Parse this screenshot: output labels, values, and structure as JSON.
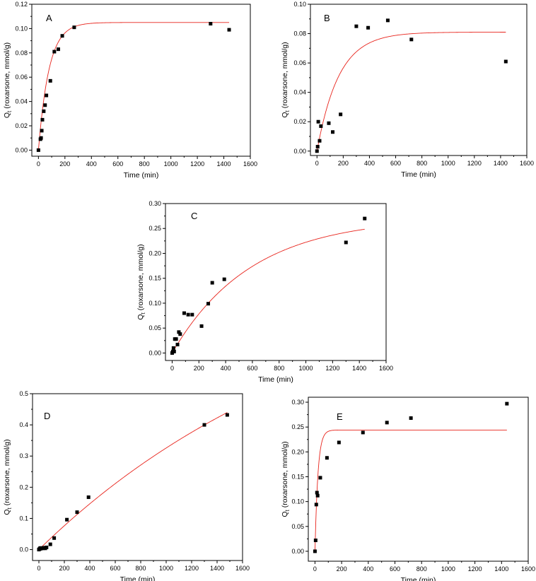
{
  "chart_data": [
    {
      "panel": "A",
      "type": "scatter",
      "xlabel": "Time (min)",
      "ylabel_prefix": "Q",
      "ylabel_sub": "t",
      "ylabel_suffix": " (roxarsone, mmol/g)",
      "xlim": [
        -50,
        1600
      ],
      "ylim": [
        -0.005,
        0.12
      ],
      "xticks": [
        0,
        200,
        400,
        600,
        800,
        1000,
        1200,
        1400,
        1600
      ],
      "yticks": [
        0.0,
        0.02,
        0.04,
        0.06,
        0.08,
        0.1,
        0.12
      ],
      "ytick_decimals": 2,
      "points": {
        "x": [
          0,
          15,
          20,
          25,
          30,
          40,
          50,
          60,
          90,
          120,
          150,
          180,
          270,
          1300,
          1440
        ],
        "y": [
          0.0,
          0.009,
          0.01,
          0.016,
          0.025,
          0.032,
          0.037,
          0.045,
          0.057,
          0.081,
          0.083,
          0.094,
          0.101,
          0.104,
          0.099
        ]
      },
      "fit": {
        "model": "pseudo-first-order",
        "qe": 0.105,
        "k": 0.0125,
        "x_range": [
          0,
          1440
        ]
      }
    },
    {
      "panel": "B",
      "type": "scatter",
      "xlabel": "Time (min)",
      "ylabel_prefix": "Q",
      "ylabel_sub": "t",
      "ylabel_suffix": " (roxarsone, mmol/g)",
      "xlim": [
        -50,
        1600
      ],
      "ylim": [
        -0.003,
        0.1
      ],
      "xticks": [
        0,
        200,
        400,
        600,
        800,
        1000,
        1200,
        1400,
        1600
      ],
      "yticks": [
        0.0,
        0.02,
        0.04,
        0.06,
        0.08,
        0.1
      ],
      "ytick_decimals": 2,
      "points": {
        "x": [
          0,
          5,
          10,
          20,
          30,
          90,
          120,
          180,
          300,
          390,
          540,
          720,
          1440
        ],
        "y": [
          0.0,
          0.003,
          0.02,
          0.007,
          0.017,
          0.019,
          0.013,
          0.025,
          0.085,
          0.084,
          0.089,
          0.076,
          0.061
        ]
      },
      "fit": {
        "model": "pseudo-first-order",
        "qe": 0.081,
        "k": 0.006,
        "x_range": [
          0,
          1440
        ]
      }
    },
    {
      "panel": "C",
      "type": "scatter",
      "xlabel": "Time (min)",
      "ylabel_prefix": "Q",
      "ylabel_sub": "t",
      "ylabel_suffix": " (roxarsone, mmol/g)",
      "xlim": [
        -50,
        1600
      ],
      "ylim": [
        -0.015,
        0.3
      ],
      "xticks": [
        0,
        200,
        400,
        600,
        800,
        1000,
        1200,
        1400,
        1600
      ],
      "yticks": [
        0.0,
        0.05,
        0.1,
        0.15,
        0.2,
        0.25,
        0.3
      ],
      "ytick_decimals": 2,
      "points": {
        "x": [
          0,
          5,
          10,
          15,
          20,
          30,
          40,
          50,
          60,
          90,
          120,
          150,
          220,
          270,
          300,
          390,
          1300,
          1440
        ],
        "y": [
          0.0,
          0.003,
          0.01,
          0.003,
          0.028,
          0.028,
          0.017,
          0.042,
          0.038,
          0.08,
          0.077,
          0.077,
          0.054,
          0.099,
          0.141,
          0.148,
          0.222,
          0.27
        ]
      },
      "fit": {
        "model": "pseudo-first-order",
        "qe": 0.272,
        "k": 0.0017,
        "x_range": [
          0,
          1440
        ]
      }
    },
    {
      "panel": "D",
      "type": "scatter",
      "xlabel": "Time (min)",
      "ylabel_prefix": "Q",
      "ylabel_sub": "t",
      "ylabel_suffix": " (roxarsone,  mmol/g)",
      "xlim": [
        -50,
        1600
      ],
      "ylim": [
        -0.035,
        0.5
      ],
      "xticks": [
        0,
        200,
        400,
        600,
        800,
        1000,
        1200,
        1400,
        1600
      ],
      "yticks": [
        0.0,
        0.1,
        0.2,
        0.3,
        0.4,
        0.5
      ],
      "ytick_decimals": 1,
      "points": {
        "x": [
          0,
          5,
          10,
          15,
          20,
          30,
          40,
          50,
          60,
          90,
          120,
          220,
          300,
          390,
          1300,
          1480
        ],
        "y": [
          0.0,
          0.002,
          0.005,
          0.003,
          0.005,
          0.004,
          0.006,
          0.004,
          0.007,
          0.017,
          0.037,
          0.096,
          0.12,
          0.168,
          0.4,
          0.432
        ]
      },
      "fit": {
        "model": "pseudo-first-order",
        "qe": 0.95,
        "k": 0.00042,
        "x_range": [
          0,
          1480
        ]
      }
    },
    {
      "panel": "E",
      "type": "scatter",
      "xlabel": "Time (min)",
      "ylabel_prefix": "Q",
      "ylabel_sub": "t",
      "ylabel_suffix": " (roxarsone, mmol/g)",
      "xlim": [
        -50,
        1600
      ],
      "ylim": [
        -0.02,
        0.31
      ],
      "xticks": [
        0,
        200,
        400,
        600,
        800,
        1000,
        1200,
        1400,
        1600
      ],
      "yticks": [
        0.0,
        0.05,
        0.1,
        0.15,
        0.2,
        0.25,
        0.3
      ],
      "ytick_decimals": 2,
      "points": {
        "x": [
          0,
          5,
          10,
          15,
          20,
          40,
          90,
          180,
          360,
          540,
          720,
          1440
        ],
        "y": [
          0.0,
          0.022,
          0.094,
          0.118,
          0.112,
          0.148,
          0.188,
          0.219,
          0.239,
          0.259,
          0.268,
          0.297
        ]
      },
      "fit": {
        "model": "pseudo-first-order",
        "qe": 0.244,
        "k": 0.045,
        "x_range": [
          0,
          1440
        ]
      }
    }
  ]
}
